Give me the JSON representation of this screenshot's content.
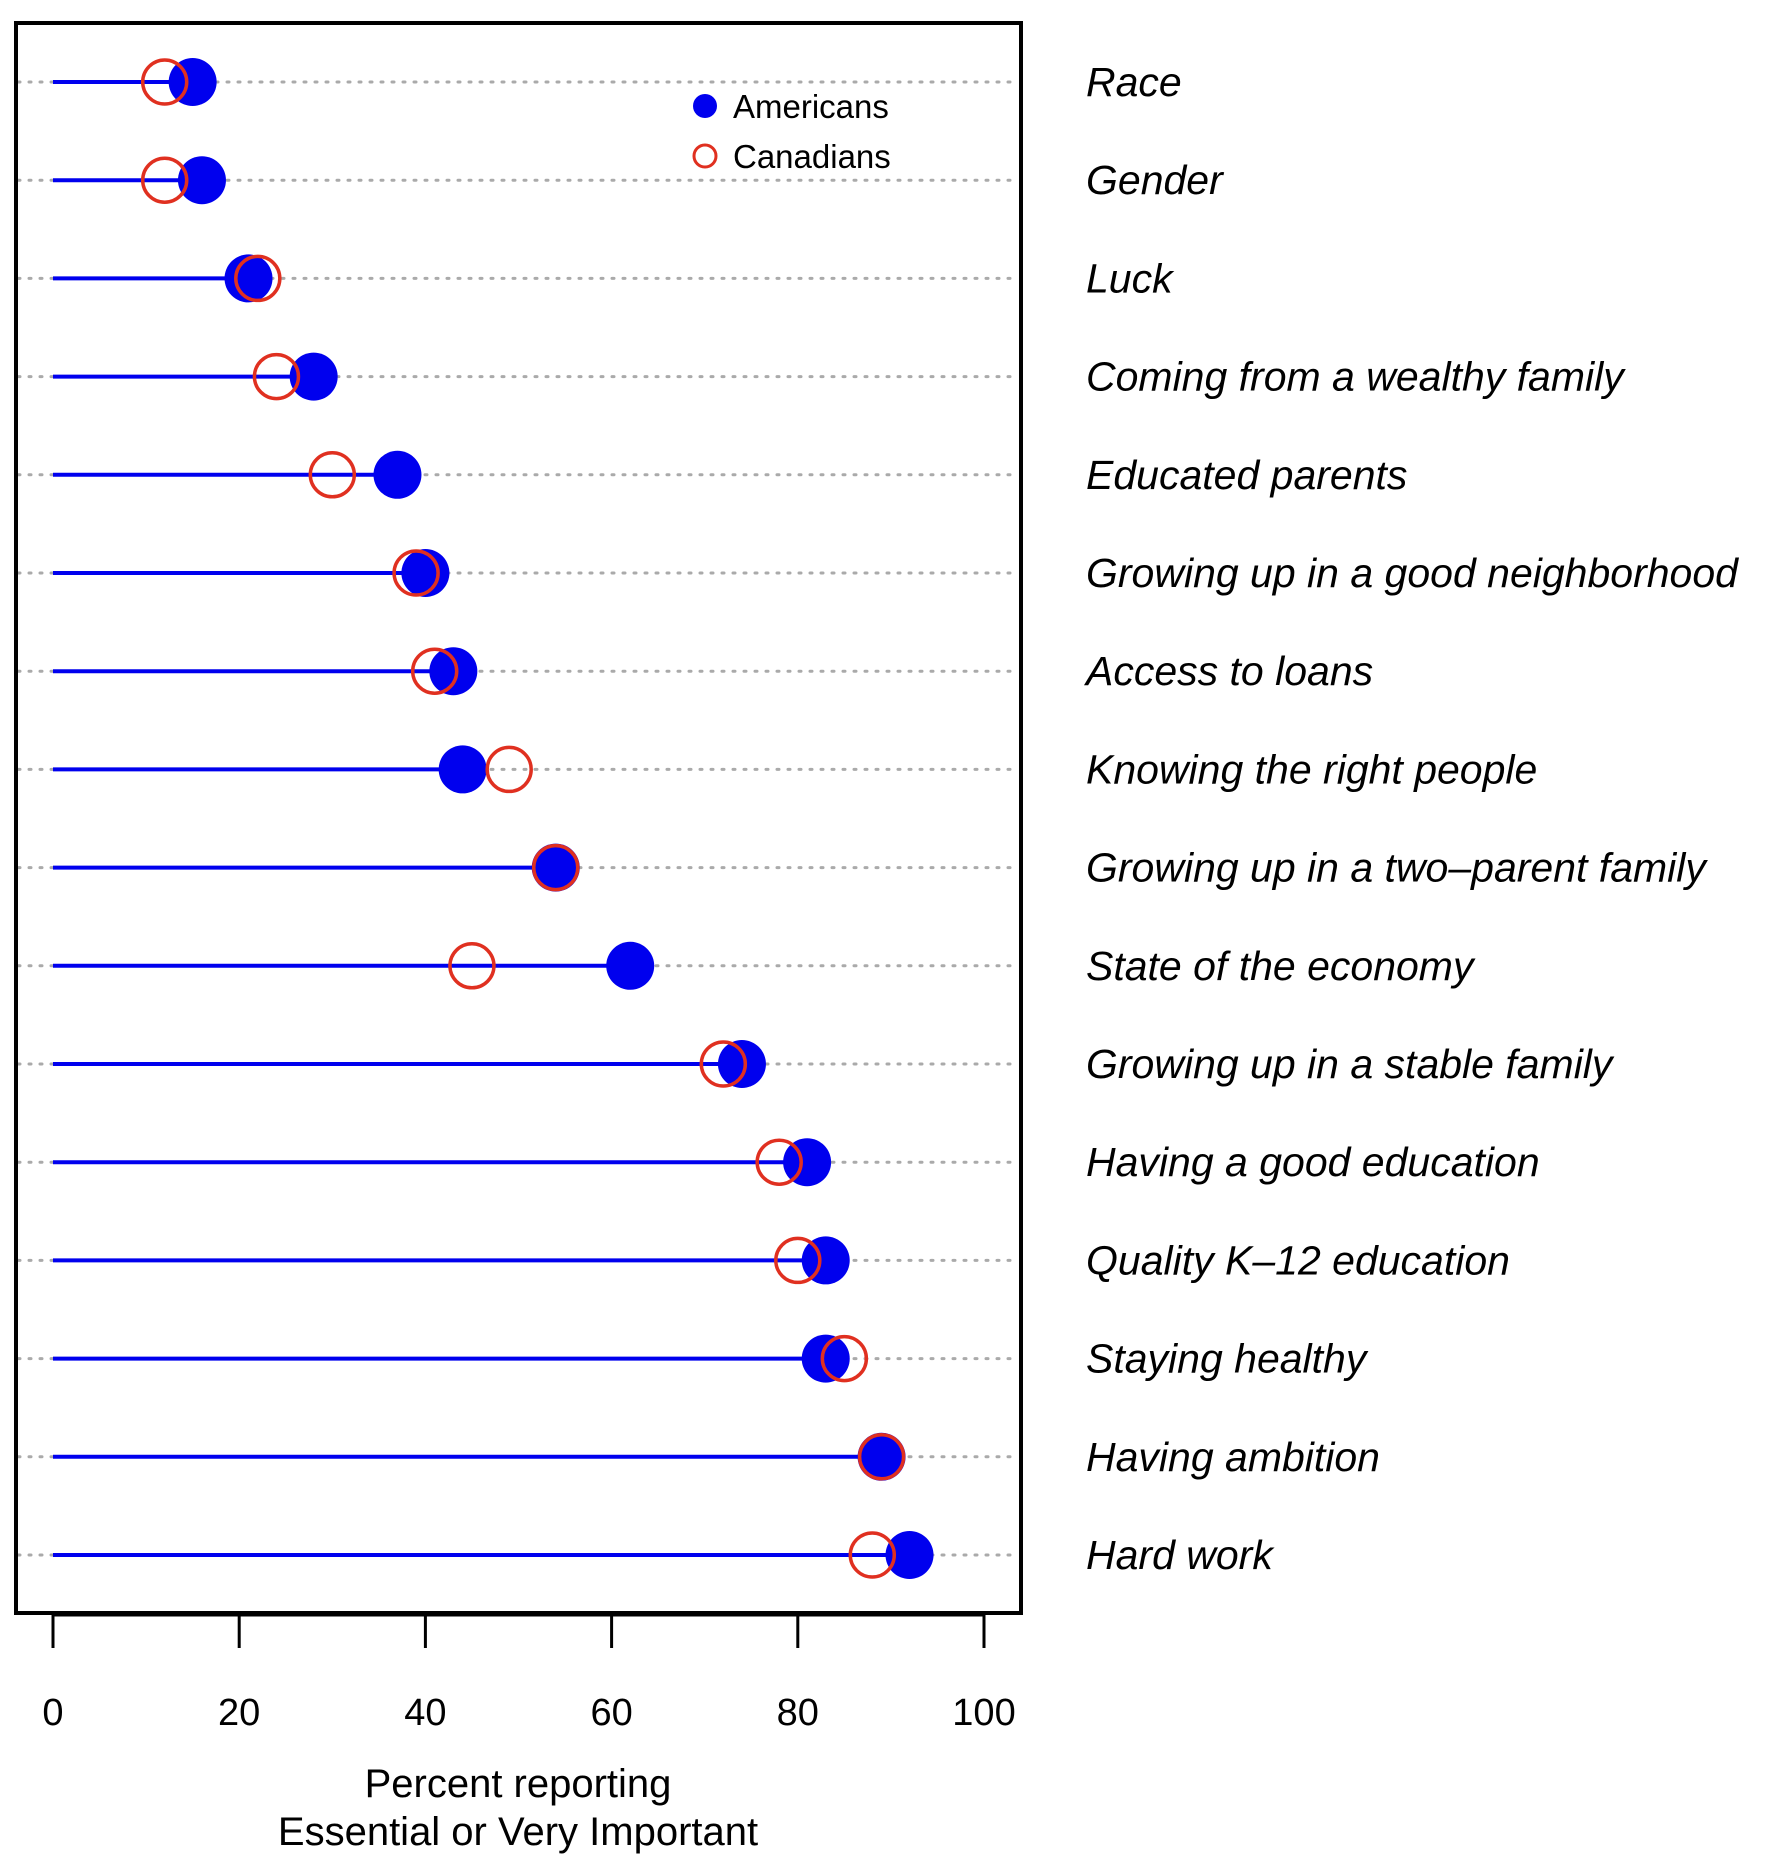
{
  "colors": {
    "americans": "#0000ee",
    "canadians": "#e03020",
    "grid": "#aaaaaa",
    "frame": "#000000"
  },
  "chart_data": {
    "type": "dot",
    "title": "",
    "xlabel_line1": "Percent reporting",
    "xlabel_line2": "Essential or Very Important",
    "ylabel": "",
    "xlim": [
      0,
      100
    ],
    "xticks": [
      0,
      20,
      40,
      60,
      80,
      100
    ],
    "grid": "dotted horizontal lines at each category",
    "legend_position": "top-right inside plot",
    "categories": [
      "Race",
      "Gender",
      "Luck",
      "Coming from a wealthy family",
      "Educated parents",
      "Growing up in a good neighborhood",
      "Access to loans",
      "Knowing the right people",
      "Growing up in a two–parent family",
      "State of the economy",
      "Growing up in a stable family",
      "Having a good education",
      "Quality K–12 education",
      "Staying healthy",
      "Having ambition",
      "Hard work"
    ],
    "series": [
      {
        "name": "Americans",
        "marker": "filled circle",
        "values": [
          15,
          16,
          21,
          28,
          37,
          40,
          43,
          44,
          54,
          62,
          74,
          81,
          83,
          83,
          89,
          92
        ]
      },
      {
        "name": "Canadians",
        "marker": "open circle",
        "values": [
          12,
          12,
          22,
          24,
          30,
          39,
          41,
          49,
          54,
          45,
          72,
          78,
          80,
          85,
          89,
          88
        ]
      }
    ]
  }
}
